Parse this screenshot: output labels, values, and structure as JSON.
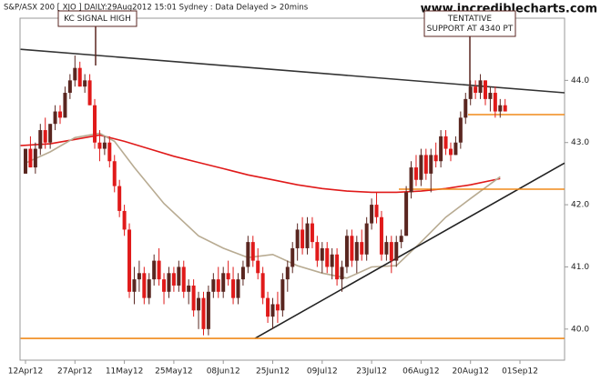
{
  "chart_data": {
    "type": "candlestick",
    "title": "S&P/ASX 200 [ XJO ] DAILY:29Aug2012 15:01 Sydney : Data Delayed > 20mins",
    "website": "www.incrediblecharts.com",
    "categories": [
      "12Apr12",
      null,
      null,
      null,
      null,
      null,
      null,
      null,
      null,
      null,
      "27Apr12",
      null,
      null,
      null,
      null,
      null,
      null,
      null,
      null,
      null,
      "11May12",
      null,
      null,
      null,
      null,
      null,
      null,
      null,
      null,
      null,
      "25May12",
      null,
      null,
      null,
      null,
      null,
      null,
      null,
      null,
      null,
      "08Jun12",
      null,
      null,
      null,
      null,
      null,
      null,
      null,
      null,
      null,
      "25Jun12",
      null,
      null,
      null,
      null,
      null,
      null,
      null,
      null,
      null,
      "09Jul12",
      null,
      null,
      null,
      null,
      null,
      null,
      null,
      null,
      null,
      "23Jul12",
      null,
      null,
      null,
      null,
      null,
      null,
      null,
      null,
      null,
      "06Aug12",
      null,
      null,
      null,
      null,
      null,
      null,
      null,
      null,
      null,
      "20Aug12",
      null,
      null,
      null,
      null,
      null,
      null,
      null,
      null,
      null,
      "01Sep12"
    ],
    "open": [
      42.5,
      42.9,
      42.6,
      42.9,
      43.2,
      43.0,
      43.3,
      43.5,
      43.4,
      43.8,
      44.0,
      44.2,
      43.9,
      44.0,
      43.6,
      43.0,
      42.9,
      43.0,
      42.7,
      42.3,
      41.9,
      41.6,
      40.6,
      40.8,
      40.9,
      40.5,
      40.8,
      41.1,
      40.8,
      40.6,
      40.9,
      40.7,
      41.0,
      40.6,
      40.7,
      40.3,
      40.5,
      40.0,
      40.6,
      40.8,
      40.6,
      40.9,
      40.8,
      40.5,
      40.8,
      41.0,
      41.4,
      41.1,
      40.9,
      40.5,
      40.2,
      40.4,
      40.3,
      40.8,
      41.0,
      41.3,
      41.6,
      41.3,
      41.7,
      41.4,
      41.1,
      41.3,
      41.0,
      41.2,
      40.8,
      41.0,
      41.5,
      41.1,
      41.4,
      41.2,
      41.7,
      42.0,
      41.8,
      41.2,
      41.4,
      41.1,
      41.4,
      41.5,
      42.2,
      42.6,
      42.4,
      42.8,
      42.5,
      42.8,
      42.7,
      43.1,
      42.9,
      42.8,
      43.0,
      43.4,
      43.7,
      43.9,
      43.8,
      44.0,
      43.7,
      43.8,
      43.5,
      43.6,
      null,
      null,
      null
    ],
    "high": [
      42.9,
      43.1,
      43.0,
      43.3,
      43.4,
      43.3,
      43.6,
      43.6,
      43.9,
      44.1,
      44.4,
      44.3,
      44.1,
      44.1,
      43.7,
      43.2,
      43.1,
      43.1,
      42.8,
      42.4,
      42.0,
      41.7,
      41.0,
      41.1,
      41.0,
      40.9,
      41.2,
      41.3,
      40.9,
      41.0,
      41.0,
      41.1,
      41.1,
      40.8,
      40.8,
      40.6,
      40.6,
      40.7,
      40.9,
      41.0,
      41.0,
      41.1,
      41.0,
      40.9,
      41.1,
      41.5,
      41.5,
      41.3,
      41.0,
      40.6,
      40.5,
      40.6,
      40.9,
      41.1,
      41.4,
      41.7,
      41.8,
      41.8,
      41.8,
      41.5,
      41.4,
      41.4,
      41.3,
      41.3,
      41.1,
      41.6,
      41.6,
      41.5,
      41.6,
      41.8,
      42.1,
      42.2,
      41.9,
      41.5,
      41.5,
      41.5,
      41.6,
      42.3,
      42.7,
      42.8,
      42.9,
      42.9,
      42.9,
      43.0,
      43.2,
      43.2,
      43.0,
      43.1,
      43.5,
      43.8,
      44.0,
      44.0,
      44.1,
      44.0,
      43.9,
      43.9,
      43.7,
      43.7,
      null,
      null,
      null
    ],
    "low": [
      42.5,
      42.6,
      42.5,
      42.8,
      42.9,
      42.9,
      43.2,
      43.3,
      43.4,
      43.7,
      43.9,
      43.9,
      43.8,
      43.6,
      42.9,
      42.7,
      42.8,
      42.6,
      42.2,
      41.8,
      41.5,
      40.5,
      40.4,
      40.6,
      40.4,
      40.4,
      40.7,
      40.7,
      40.4,
      40.5,
      40.6,
      40.6,
      40.5,
      40.4,
      40.2,
      40.0,
      39.9,
      39.9,
      40.5,
      40.5,
      40.5,
      40.7,
      40.4,
      40.4,
      40.7,
      40.9,
      41.0,
      40.8,
      40.4,
      40.1,
      40.0,
      40.1,
      40.2,
      40.6,
      40.9,
      41.1,
      41.2,
      41.2,
      41.3,
      41.0,
      40.9,
      40.9,
      40.8,
      40.7,
      40.6,
      40.9,
      41.0,
      40.9,
      41.1,
      41.1,
      41.6,
      41.7,
      41.1,
      41.1,
      40.9,
      41.0,
      41.3,
      41.5,
      42.1,
      42.3,
      42.3,
      42.4,
      42.2,
      42.6,
      42.6,
      42.8,
      42.7,
      42.8,
      42.9,
      43.3,
      43.6,
      43.7,
      43.7,
      43.6,
      43.5,
      43.4,
      43.4,
      43.5,
      null,
      null,
      null
    ],
    "close": [
      42.9,
      42.6,
      42.9,
      43.2,
      43.0,
      43.3,
      43.5,
      43.4,
      43.8,
      44.0,
      44.2,
      43.9,
      44.0,
      43.6,
      43.0,
      42.9,
      43.0,
      42.7,
      42.3,
      41.9,
      41.6,
      40.6,
      40.8,
      40.9,
      40.5,
      40.8,
      41.1,
      40.8,
      40.6,
      40.9,
      40.7,
      41.0,
      40.6,
      40.7,
      40.3,
      40.5,
      40.0,
      40.6,
      40.8,
      40.6,
      40.9,
      40.8,
      40.5,
      40.8,
      41.0,
      41.4,
      41.1,
      40.9,
      40.5,
      40.2,
      40.4,
      40.3,
      40.8,
      41.0,
      41.3,
      41.6,
      41.3,
      41.7,
      41.4,
      41.1,
      41.3,
      41.0,
      41.2,
      40.8,
      41.0,
      41.5,
      41.1,
      41.4,
      41.2,
      41.7,
      42.0,
      41.8,
      41.2,
      41.4,
      41.1,
      41.4,
      41.5,
      42.2,
      42.6,
      42.4,
      42.8,
      42.5,
      42.8,
      42.7,
      43.1,
      42.9,
      42.8,
      43.0,
      43.4,
      43.7,
      43.9,
      43.8,
      44.0,
      43.7,
      43.8,
      43.5,
      43.6,
      43.5,
      null,
      null,
      null
    ],
    "up_color": "#5a2620",
    "down_color": "#e01a1a",
    "ylim": [
      39.5,
      45.0
    ],
    "yticks": [
      {
        "value": 40,
        "label": "40.0"
      },
      {
        "value": 41,
        "label": "41.0"
      },
      {
        "value": 42,
        "label": "42.0"
      },
      {
        "value": 43,
        "label": "43.0"
      },
      {
        "value": 44,
        "label": "44.0"
      }
    ],
    "overlays": [
      {
        "color": "#e01a1a",
        "points": [
          [
            -1,
            42.95
          ],
          [
            5,
            42.98
          ],
          [
            10,
            43.05
          ],
          [
            15,
            43.12
          ],
          [
            20,
            43.02
          ],
          [
            25,
            42.9
          ],
          [
            30,
            42.78
          ],
          [
            35,
            42.68
          ],
          [
            40,
            42.58
          ],
          [
            45,
            42.48
          ],
          [
            50,
            42.4
          ],
          [
            55,
            42.32
          ],
          [
            60,
            42.26
          ],
          [
            65,
            42.22
          ],
          [
            70,
            42.2
          ],
          [
            75,
            42.2
          ],
          [
            80,
            42.22
          ],
          [
            85,
            42.26
          ],
          [
            90,
            42.32
          ],
          [
            96,
            42.42
          ]
        ]
      },
      {
        "color": "#b8ab92",
        "points": [
          [
            0,
            42.67
          ],
          [
            5,
            42.85
          ],
          [
            10,
            43.08
          ],
          [
            15,
            43.15
          ],
          [
            18,
            43.02
          ],
          [
            22,
            42.6
          ],
          [
            28,
            42.02
          ],
          [
            35,
            41.5
          ],
          [
            40,
            41.3
          ],
          [
            45,
            41.15
          ],
          [
            50,
            41.2
          ],
          [
            55,
            41.02
          ],
          [
            60,
            40.9
          ],
          [
            65,
            40.82
          ],
          [
            70,
            41.0
          ],
          [
            75,
            41.02
          ],
          [
            80,
            41.4
          ],
          [
            85,
            41.8
          ],
          [
            90,
            42.1
          ],
          [
            96,
            42.45
          ]
        ]
      },
      {
        "color": "#333333",
        "points": [
          [
            -1,
            44.5
          ],
          [
            109,
            43.8
          ]
        ]
      },
      {
        "color": "#222222",
        "points": [
          [
            46.4,
            39.85
          ],
          [
            109,
            42.67
          ]
        ]
      },
      {
        "color": "#f08a1a",
        "points": [
          [
            -1,
            39.85
          ],
          [
            109,
            39.85
          ]
        ]
      },
      {
        "color": "#f08a1a",
        "points": [
          [
            75.5,
            42.25
          ],
          [
            109,
            42.25
          ]
        ]
      },
      {
        "color": "#f08a1a",
        "points": [
          [
            89.5,
            43.45
          ],
          [
            109,
            43.45
          ]
        ]
      }
    ],
    "annotations": [
      {
        "text": [
          "KC SIGNAL HIGH"
        ]
      },
      {
        "text": [
          "TENTATIVE",
          "SUPPORT AT 4340 PT"
        ]
      }
    ]
  }
}
